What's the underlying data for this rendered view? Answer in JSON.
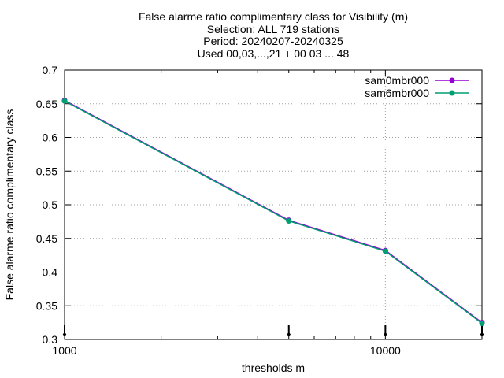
{
  "chart_data": {
    "type": "line",
    "title_lines": [
      "False alarme ratio complimentary class  for Visibility (m)",
      "Selection: ALL    719 stations",
      "Period: 20240207-20240325",
      "Used 00,03,...,21 + 00 03 ... 48"
    ],
    "xlabel": "thresholds m",
    "ylabel": "False alarme ratio complimentary class",
    "x_scale": "log",
    "xlim": [
      1000,
      20000
    ],
    "ylim": [
      0.3,
      0.7
    ],
    "x_ticks": [
      1000,
      10000
    ],
    "x_tick_labels": [
      "1000",
      "10000"
    ],
    "y_ticks": [
      0.3,
      0.35,
      0.4,
      0.45,
      0.5,
      0.55,
      0.6,
      0.65,
      0.7
    ],
    "y_tick_labels": [
      "0.3",
      "0.35",
      "0.4",
      "0.45",
      "0.5",
      "0.55",
      "0.6",
      "0.65",
      "0.7"
    ],
    "grid": true,
    "legend_position": "top-right",
    "x": [
      1000,
      5000,
      10000,
      20000
    ],
    "series": [
      {
        "name": "sam0mbr000",
        "color": "#9400d3",
        "values": [
          0.655,
          0.477,
          0.432,
          0.325
        ]
      },
      {
        "name": "sam6mbr000",
        "color": "#009e73",
        "values": [
          0.654,
          0.476,
          0.431,
          0.324
        ]
      }
    ]
  }
}
